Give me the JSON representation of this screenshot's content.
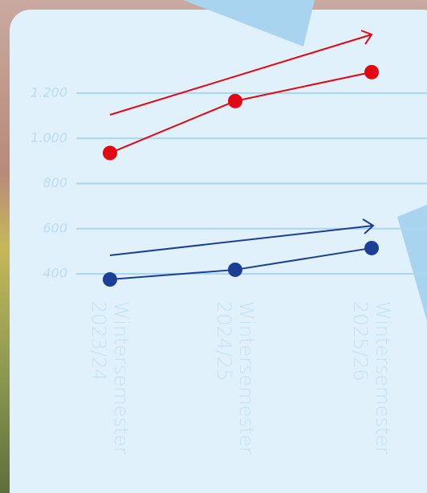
{
  "chart_data": {
    "type": "line",
    "categories": [
      [
        "Wintersemester",
        "2023/24"
      ],
      [
        "Wintersemester",
        "2024/25"
      ],
      [
        "Wintersemester",
        "2025/26"
      ]
    ],
    "series": [
      {
        "color": "#e30613",
        "values": [
          935,
          1165,
          1293
        ]
      },
      {
        "color": "#1b3f94",
        "values": [
          375,
          418,
          514
        ]
      }
    ],
    "ylim": [
      300,
      1400
    ],
    "yticks": [
      400,
      600,
      800,
      {
        "value": 1000,
        "label": "1.000"
      },
      {
        "value": 1200,
        "label": "1.200"
      }
    ],
    "grid": true
  }
}
